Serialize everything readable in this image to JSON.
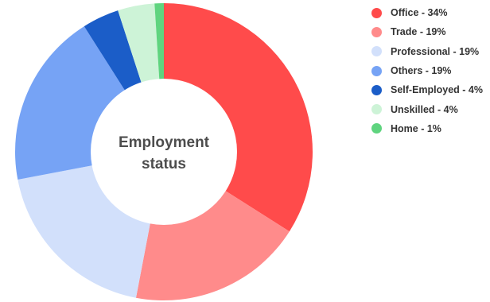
{
  "chart_data": {
    "type": "pie",
    "variant": "donut",
    "center_label": [
      "Employment",
      "status"
    ],
    "legend_position": "right",
    "slices": [
      {
        "label": "Office - 34%",
        "value": 34,
        "color": "#ff4b4b"
      },
      {
        "label": "Trade - 19%",
        "value": 19,
        "color": "#ff8b8b"
      },
      {
        "label": "Professional - 19%",
        "value": 19,
        "color": "#d2e0fb"
      },
      {
        "label": "Others - 19%",
        "value": 19,
        "color": "#76a3f5"
      },
      {
        "label": "Self-Employed - 4%",
        "value": 4,
        "color": "#1b5dc8"
      },
      {
        "label": "Unskilled - 4%",
        "value": 4,
        "color": "#cdf3d7"
      },
      {
        "label": "Home - 1%",
        "value": 1,
        "color": "#5fd47f"
      }
    ]
  }
}
